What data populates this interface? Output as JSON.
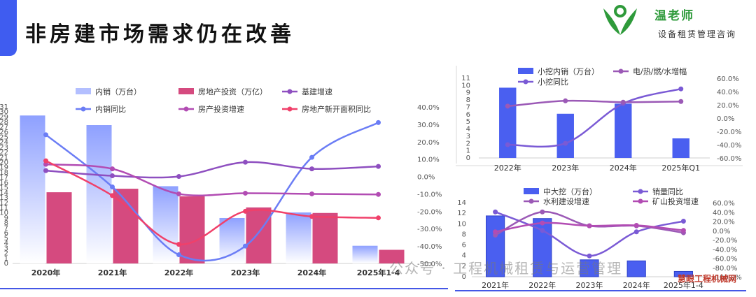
{
  "header": {
    "title": "非房建市场需求仍在改善",
    "brand": "温老师",
    "slogan": "设备租赁管理咨询"
  },
  "watermark": {
    "text": "公众号 · 工程机械租赁与运营管理",
    "site": "慧眼工程机械网"
  },
  "chart_data": [
    {
      "type": "bar",
      "categories": [
        "2020年",
        "2021年",
        "2022年",
        "2023年",
        "2024年",
        "2025年1-4"
      ],
      "left_axis": {
        "ticks": [
          "0",
          "1",
          "2",
          "3",
          "4",
          "5",
          "6",
          "7",
          "8",
          "9",
          "10",
          "11",
          "12",
          "13",
          "14",
          "15",
          "16",
          "17",
          "18",
          "19",
          "20",
          "21",
          "22",
          "23",
          "24",
          "25",
          "26",
          "27",
          "28",
          "29",
          "30",
          "31"
        ],
        "range": [
          0,
          31
        ]
      },
      "right_axis": {
        "ticks": [
          "-50.0%",
          "-40.0%",
          "-30.0%",
          "-20.0%",
          "-10.0%",
          "0.0%",
          "10.0%",
          "20.0%",
          "30.0%",
          "40.0%"
        ],
        "range": [
          -50,
          40
        ]
      },
      "bar_series": [
        {
          "name": "内销（万台）",
          "color": "#8ea0ff",
          "values": [
            29.3,
            27.4,
            15.3,
            9.0,
            10.1,
            3.5
          ]
        },
        {
          "name": "房地产投资（万亿）",
          "color": "#d54a7f",
          "values": [
            14.1,
            14.8,
            13.3,
            11.1,
            10.0,
            2.7
          ]
        }
      ],
      "line_series": [
        {
          "name": "内销同比",
          "color": "#6b7df5",
          "values": [
            24,
            -6,
            -45,
            -40,
            11,
            31
          ]
        },
        {
          "name": "基建增速",
          "color": "#8e4fc0",
          "values": [
            3.4,
            0.4,
            0,
            8.2,
            4.4,
            5.8
          ]
        },
        {
          "name": "房产投资增速",
          "color": "#b24cb3",
          "values": [
            7,
            4.4,
            -10,
            -9.6,
            -10,
            -10.3
          ]
        },
        {
          "name": "房地产新开面积同比",
          "color": "#f0406a",
          "values": [
            9,
            -11,
            -39,
            -20,
            -23,
            -23.8
          ]
        }
      ]
    },
    {
      "type": "bar",
      "categories": [
        "2022年",
        "2023年",
        "2024年",
        "2025年Q1"
      ],
      "left_axis": {
        "ticks": [
          "0",
          "1",
          "2",
          "3",
          "4",
          "5",
          "6",
          "7",
          "8",
          "9",
          "10",
          "11"
        ],
        "range": [
          0,
          11
        ]
      },
      "right_axis": {
        "ticks": [
          "-60.0%",
          "-40.0%",
          "-20.0%",
          "0.0%",
          "20.0%",
          "40.0%",
          "60.0%"
        ],
        "range": [
          -60,
          60
        ]
      },
      "bar_series": [
        {
          "name": "小挖内销（万台）",
          "color": "#4a5ff0",
          "values": [
            9.7,
            6.1,
            7.5,
            2.7
          ]
        }
      ],
      "line_series": [
        {
          "name": "小挖同比",
          "color": "#7a5ad5",
          "values": [
            -40,
            -38,
            22,
            44
          ]
        },
        {
          "name": "电/热/燃/水增幅",
          "color": "#9b59b6",
          "values": [
            18,
            26,
            24,
            25
          ]
        }
      ]
    },
    {
      "type": "bar",
      "categories": [
        "2021年",
        "2022年",
        "2023年",
        "2024年",
        "2025年1-4"
      ],
      "left_axis": {
        "ticks": [
          "0",
          "2",
          "4",
          "6",
          "8",
          "10",
          "12",
          "14"
        ],
        "range": [
          0,
          14
        ]
      },
      "right_axis": {
        "ticks": [
          "-100.0%",
          "-80.0%",
          "-60.0%",
          "-40.0%",
          "-20.0%",
          "0.0%",
          "20.0%",
          "40.0%",
          "60.0%"
        ],
        "range": [
          -100,
          60
        ]
      },
      "bar_series": [
        {
          "name": "中大挖（万台）",
          "color": "#4a5ff0",
          "values": [
            11.5,
            11.0,
            3.2,
            3.0,
            1.0
          ]
        }
      ],
      "line_series": [
        {
          "name": "销量同比",
          "color": "#7a5ad5",
          "values": [
            40,
            0,
            -55,
            -3,
            20
          ]
        },
        {
          "name": "水利建设增速",
          "color": "#9b59b6",
          "values": [
            -10,
            40,
            10,
            10,
            -5
          ]
        },
        {
          "name": "矿山投资增速",
          "color": "#b24cb3",
          "values": [
            -3,
            16,
            10,
            11,
            0
          ]
        }
      ]
    }
  ]
}
